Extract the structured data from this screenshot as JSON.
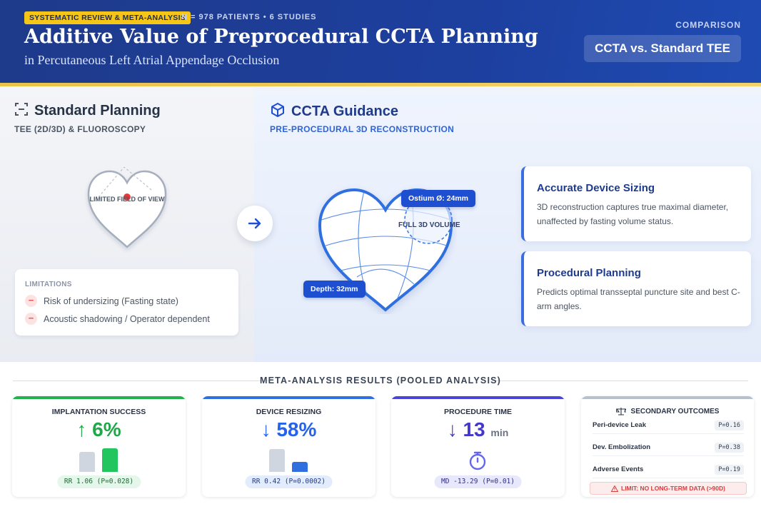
{
  "header": {
    "badge": "SYSTEMATIC REVIEW & META-ANALYSIS",
    "meta": "N = 978 PATIENTS • 6 STUDIES",
    "title": "Additive Value of Preprocedural CCTA Planning",
    "subtitle": "in Percutaneous Left Atrial Appendage Occlusion",
    "comparison_label": "COMPARISON",
    "comparison_value": "CCTA vs. Standard TEE"
  },
  "standard": {
    "title": "Standard Planning",
    "subtitle": "TEE (2D/3D) & FLUOROSCOPY",
    "heart_label": "LIMITED FIELD OF VIEW",
    "limitations_title": "LIMITATIONS",
    "limitations": [
      "Risk of undersizing (Fasting state)",
      "Acoustic shadowing / Operator dependent"
    ]
  },
  "ccta": {
    "title": "CCTA Guidance",
    "subtitle": "PRE-PROCEDURAL 3D RECONSTRUCTION",
    "ostium_chip": "Ostium Ø: 24mm",
    "depth_chip": "Depth: 32mm",
    "volume_label": "FULL 3D VOLUME",
    "features": [
      {
        "title": "Accurate Device Sizing",
        "text": "3D reconstruction captures true maximal diameter, unaffected by fasting volume status."
      },
      {
        "title": "Procedural Planning",
        "text": "Predicts optimal transseptal puncture site and best C-arm angles."
      }
    ]
  },
  "results": {
    "title": "META-ANALYSIS RESULTS (POOLED ANALYSIS)",
    "implantation": {
      "label": "IMPLANTATION SUCCESS",
      "arrow": "↑",
      "value": "6%",
      "stat": "RR 1.06 (P=0.028)",
      "color": "#22b34a"
    },
    "resizing": {
      "label": "DEVICE RESIZING",
      "arrow": "↓",
      "value": "58%",
      "stat": "RR 0.42 (P=0.0002)",
      "color": "#2f6fe0"
    },
    "time": {
      "label": "PROCEDURE TIME",
      "arrow": "↓",
      "value": "13",
      "unit": "min",
      "stat": "MD -13.29 (P=0.01)",
      "color": "#4a45d6"
    },
    "secondary": {
      "title": "SECONDARY OUTCOMES",
      "rows": [
        {
          "label": "Peri-device Leak",
          "p": "P=0.16"
        },
        {
          "label": "Dev. Embolization",
          "p": "P=0.38"
        },
        {
          "label": "Adverse Events",
          "p": "P=0.19"
        }
      ],
      "warning": "LIMIT: NO LONG-TERM DATA (>90D)"
    }
  }
}
